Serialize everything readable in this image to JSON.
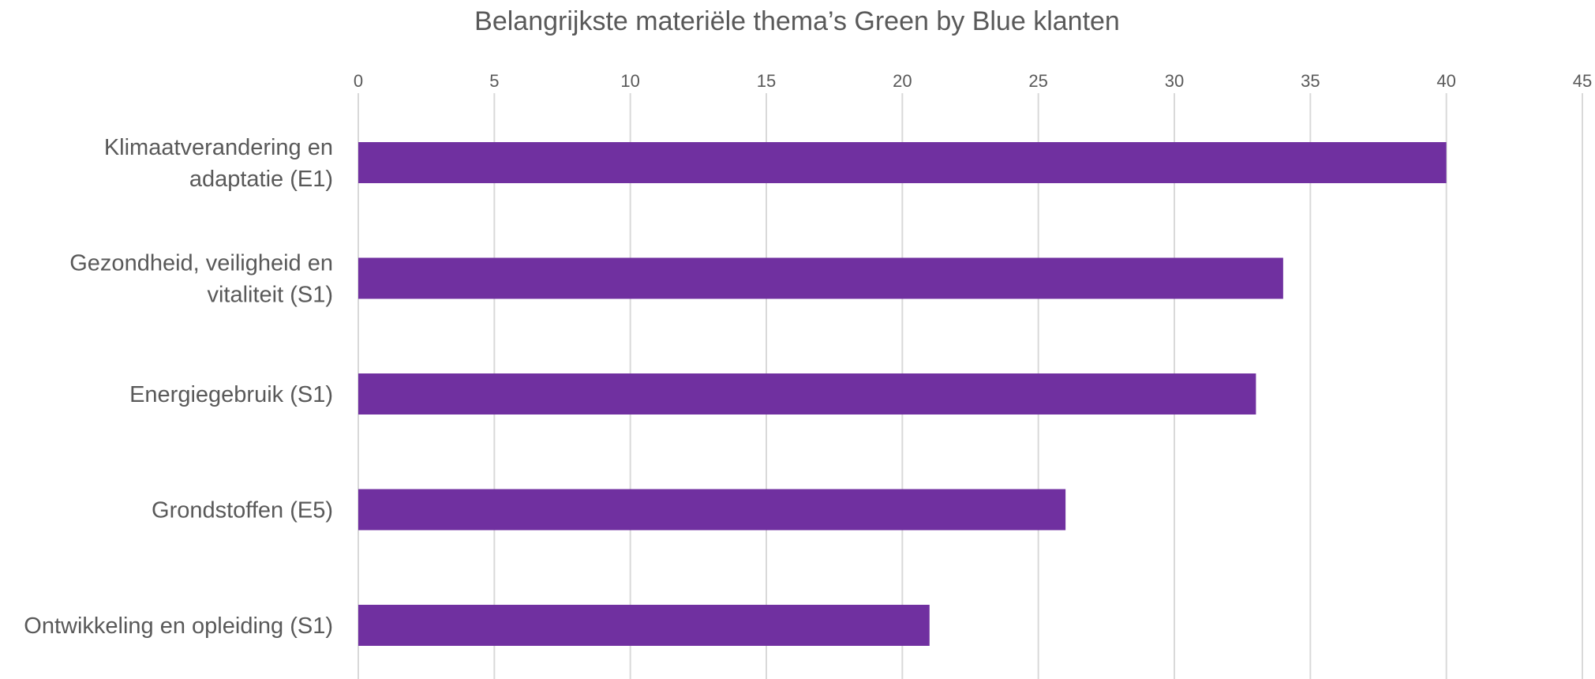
{
  "chart_data": {
    "type": "bar",
    "orientation": "horizontal",
    "title": "Belangrijkste materiële thema’s Green by Blue klanten",
    "categories": [
      [
        "Klimaatverandering en",
        "adaptatie (E1)"
      ],
      [
        "Gezondheid, veiligheid en",
        "vitaliteit (S1)"
      ],
      [
        "Energiegebruik (S1)"
      ],
      [
        "Grondstoffen (E5)"
      ],
      [
        "Ontwikkeling en opleiding (S1)"
      ]
    ],
    "values": [
      40,
      34,
      33,
      26,
      21
    ],
    "xlim": [
      0,
      45
    ],
    "xticks": [
      0,
      5,
      10,
      15,
      20,
      25,
      30,
      35,
      40,
      45
    ],
    "x_axis_position": "top",
    "grid": true,
    "legend": "none",
    "bar_color": "#7030a0"
  }
}
